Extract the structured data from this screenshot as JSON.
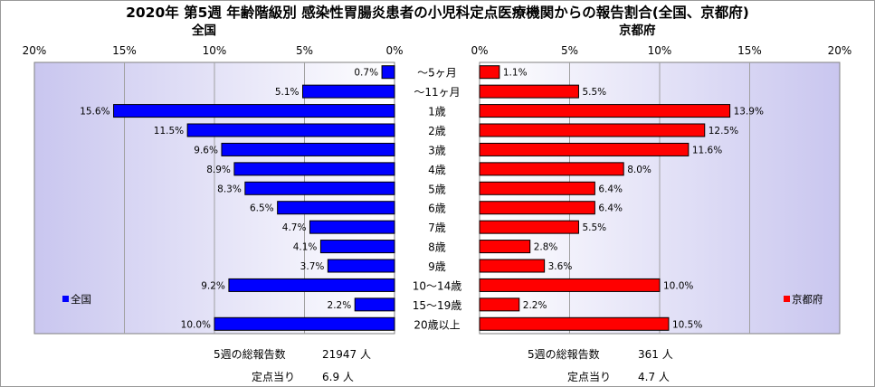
{
  "title": "2020年 第5週 年齢階級別 感染性胃腸炎患者の小児科定点医療機関からの報告割合(全国、京都府)",
  "chart_data": {
    "type": "bar",
    "categories": [
      "～5ヶ月",
      "～11ヶ月",
      "1歳",
      "2歳",
      "3歳",
      "4歳",
      "5歳",
      "6歳",
      "7歳",
      "8歳",
      "9歳",
      "10～14歳",
      "15～19歳",
      "20歳以上"
    ],
    "left": {
      "title": "全国",
      "legend": "全国",
      "color": "#0000ff",
      "xlim": [
        0,
        20
      ],
      "ticks": [
        "0%",
        "5%",
        "10%",
        "15%",
        "20%"
      ],
      "values": [
        0.7,
        5.1,
        15.6,
        11.5,
        9.6,
        8.9,
        8.3,
        6.5,
        4.7,
        4.1,
        3.7,
        9.2,
        2.2,
        10.0
      ],
      "labels": [
        "0.7%",
        "5.1%",
        "15.6%",
        "11.5%",
        "9.6%",
        "8.9%",
        "8.3%",
        "6.5%",
        "4.7%",
        "4.1%",
        "3.7%",
        "9.2%",
        "2.2%",
        "10.0%"
      ],
      "total_label": "5週の総報告数",
      "total_value": "21947",
      "per_site_label": "定点当り",
      "per_site_value": "6.9",
      "unit": "人"
    },
    "right": {
      "title": "京都府",
      "legend": "京都府",
      "color": "#ff0000",
      "xlim": [
        0,
        20
      ],
      "ticks": [
        "0%",
        "5%",
        "10%",
        "15%",
        "20%"
      ],
      "values": [
        1.1,
        5.5,
        13.9,
        12.5,
        11.6,
        8.0,
        6.4,
        6.4,
        5.5,
        2.8,
        3.6,
        10.0,
        2.2,
        10.5
      ],
      "labels": [
        "1.1%",
        "5.5%",
        "13.9%",
        "12.5%",
        "11.6%",
        "8.0%",
        "6.4%",
        "6.4%",
        "5.5%",
        "2.8%",
        "3.6%",
        "10.0%",
        "2.2%",
        "10.5%"
      ],
      "total_label": "5週の総報告数",
      "total_value": "361",
      "per_site_label": "定点当り",
      "per_site_value": "4.7",
      "unit": "人"
    }
  }
}
